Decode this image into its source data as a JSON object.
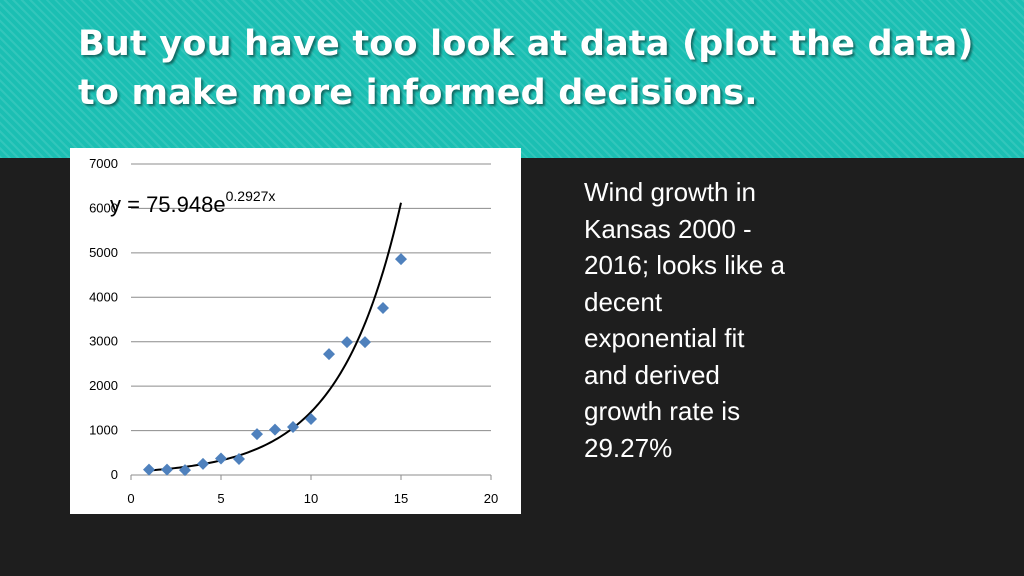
{
  "slide": {
    "title": "But you have too look at data (plot the data) to make more informed decisions.",
    "description": "Wind growth in\nKansas 2000 -\n2016;  looks like a\ndecent\nexponential fit\nand derived\ngrowth rate is\n29.27%"
  },
  "colors": {
    "banner": "#1bbfb3",
    "background": "#1e1e1e",
    "marker": "#4f81bd",
    "trendline": "#000000"
  },
  "chart_data": {
    "type": "scatter",
    "title": "",
    "xlabel": "",
    "ylabel": "",
    "xlim": [
      0,
      20
    ],
    "ylim": [
      0,
      7000
    ],
    "x_ticks": [
      "0",
      "5",
      "10",
      "15",
      "20"
    ],
    "y_ticks": [
      "0",
      "1000",
      "2000",
      "3000",
      "4000",
      "5000",
      "6000",
      "7000"
    ],
    "grid": "horizontal",
    "legend": "none",
    "marker": "diamond",
    "series": [
      {
        "x": [
          1,
          2,
          3,
          4,
          5,
          6,
          7,
          8,
          9,
          10,
          11,
          12,
          13,
          14,
          15
        ],
        "y": [
          120,
          120,
          110,
          250,
          370,
          360,
          920,
          1020,
          1080,
          1260,
          2720,
          2990,
          2990,
          3760,
          4860
        ]
      }
    ],
    "trendline": {
      "type": "exponential",
      "a": 75.948,
      "b": 0.2927,
      "x_range": [
        1,
        15
      ],
      "label_prefix": "y = 75.948e",
      "label_exponent": "0.2927x"
    }
  }
}
